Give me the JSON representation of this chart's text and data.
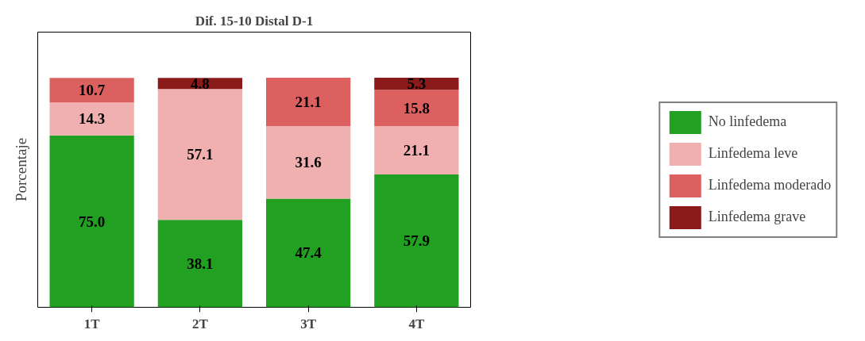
{
  "chart_data": {
    "type": "bar",
    "title": "Dif. 15-10 Distal D-1",
    "ylabel": "Porcentaje",
    "categories": [
      "1T",
      "2T",
      "3T",
      "4T"
    ],
    "stacked": true,
    "ylim": [
      0,
      120
    ],
    "tick_labels": "x",
    "grid": false,
    "legend": "right",
    "series": [
      {
        "name": "No linfedema",
        "color": "#22a022",
        "values": [
          75.0,
          38.1,
          47.4,
          57.9
        ],
        "value_labels": [
          "75.0",
          "38.1",
          "47.4",
          "57.9"
        ]
      },
      {
        "name": "Linfedema leve",
        "color": "#f0b0b0",
        "values": [
          14.3,
          57.1,
          31.6,
          21.1
        ],
        "value_labels": [
          "14.3",
          "57.1",
          "31.6",
          "21.1"
        ]
      },
      {
        "name": "Linfedema moderado",
        "color": "#dd6060",
        "values": [
          10.7,
          null,
          21.1,
          15.8
        ],
        "value_labels": [
          "10.7",
          null,
          "21.1",
          "15.8"
        ]
      },
      {
        "name": "Linfedema grave",
        "color": "#8b1a1a",
        "values": [
          null,
          4.8,
          null,
          5.3
        ],
        "value_labels": [
          null,
          "4.8",
          null,
          "5.3"
        ]
      }
    ]
  }
}
